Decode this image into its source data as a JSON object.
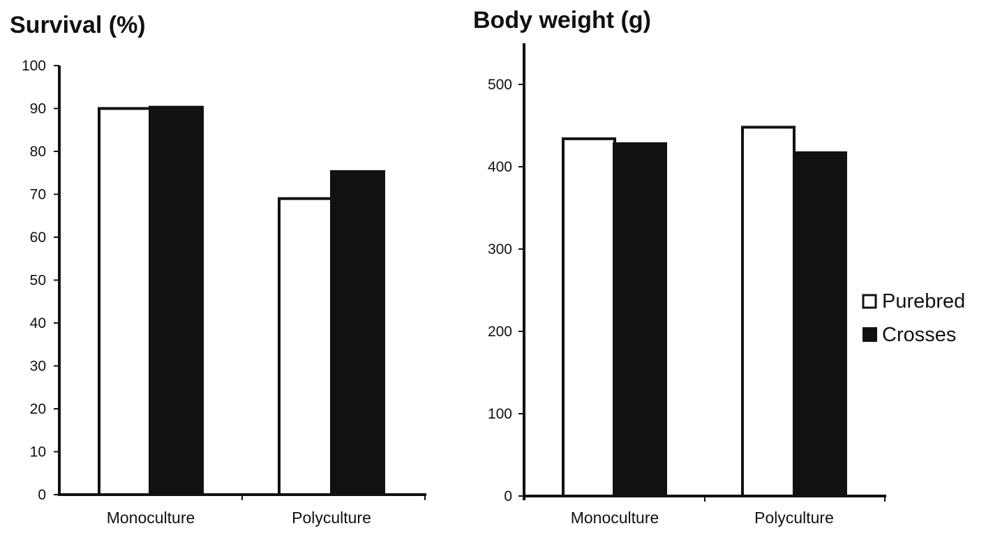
{
  "figure": {
    "legend": {
      "placement": "right",
      "entries": [
        {
          "label": "Purebred",
          "color": "#ffffff",
          "stroke": "#111111"
        },
        {
          "label": "Crosses",
          "color": "#111111",
          "stroke": "#111111"
        }
      ]
    }
  },
  "chart_data": [
    {
      "type": "bar",
      "title": "Survival (%)",
      "xlabel": "",
      "ylabel": "",
      "categories": [
        "Monoculture",
        "Polyculture"
      ],
      "series": [
        {
          "name": "Purebred",
          "values": [
            90,
            69
          ],
          "color": "#ffffff"
        },
        {
          "name": "Crosses",
          "values": [
            90.3,
            75.3
          ],
          "color": "#111111"
        }
      ],
      "ylim": [
        0,
        100
      ],
      "yticks": [
        0,
        10,
        20,
        30,
        40,
        50,
        60,
        70,
        80,
        90,
        100
      ],
      "grid": false
    },
    {
      "type": "bar",
      "title": "Body weight (g)",
      "xlabel": "",
      "ylabel": "",
      "categories": [
        "Monoculture",
        "Polyculture"
      ],
      "series": [
        {
          "name": "Purebred",
          "values": [
            434,
            448
          ],
          "color": "#ffffff"
        },
        {
          "name": "Crosses",
          "values": [
            428,
            417
          ],
          "color": "#111111"
        }
      ],
      "ylim": [
        0,
        550
      ],
      "yticks": [
        0,
        100,
        200,
        300,
        400,
        500
      ],
      "grid": false
    }
  ]
}
